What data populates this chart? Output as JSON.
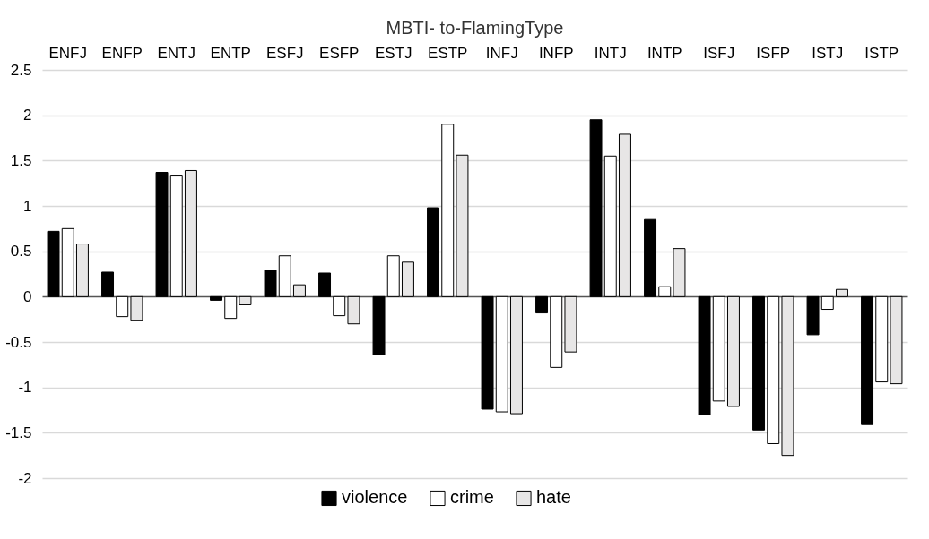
{
  "chart_data": {
    "type": "bar",
    "title": "MBTI- to-FlamingType",
    "categories": [
      "ENFJ",
      "ENFP",
      "ENTJ",
      "ENTP",
      "ESFJ",
      "ESFP",
      "ESTJ",
      "ESTP",
      "INFJ",
      "INFP",
      "INTJ",
      "INTP",
      "ISFJ",
      "ISFP",
      "ISTJ",
      "ISTP"
    ],
    "series": [
      {
        "name": "violence",
        "color": "#000000",
        "values": [
          0.72,
          0.27,
          1.37,
          -0.04,
          0.29,
          0.26,
          -0.64,
          0.98,
          -1.24,
          -0.18,
          1.95,
          0.85,
          -1.3,
          -1.47,
          -0.42,
          -1.41
        ]
      },
      {
        "name": "crime",
        "color": "#ffffff",
        "values": [
          0.75,
          -0.22,
          1.33,
          -0.24,
          0.45,
          -0.21,
          0.45,
          1.9,
          -1.27,
          -0.78,
          1.55,
          0.11,
          -1.15,
          -1.62,
          -0.14,
          -0.94
        ]
      },
      {
        "name": "hate",
        "color": "#e7e6e6",
        "values": [
          0.58,
          -0.26,
          1.39,
          -0.09,
          0.13,
          -0.3,
          0.38,
          1.56,
          -1.29,
          -0.61,
          1.79,
          0.53,
          -1.21,
          -1.75,
          0.08,
          -0.96
        ]
      }
    ],
    "ylim": [
      -2,
      2.5
    ],
    "yticks": [
      -2,
      -1.5,
      -1,
      -0.5,
      0,
      0.5,
      1,
      1.5,
      2,
      2.5
    ],
    "grid": "y",
    "legend": "bottom"
  }
}
